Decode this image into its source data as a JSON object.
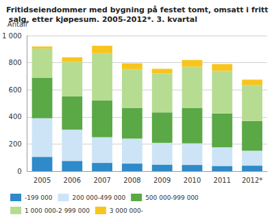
{
  "chart_data": {
    "type": "bar",
    "title": "Fritidseiendommer med bygning på festet tomt, omsatt i fritt salg, etter kjøpesum. 2005-2012*. 3. kvartal",
    "y_label": "Antall",
    "categories": [
      "2005",
      "2006",
      "2007",
      "2008",
      "2009",
      "2010",
      "2011",
      "2012*"
    ],
    "series": [
      {
        "name": "-199 000",
        "color": "#2e8ac8",
        "values": [
          105,
          75,
          60,
          55,
          48,
          45,
          38,
          40
        ]
      },
      {
        "name": "200 000-499 000",
        "color": "#cce4f6",
        "values": [
          285,
          230,
          190,
          185,
          160,
          160,
          137,
          110
        ]
      },
      {
        "name": "500 000-999 000",
        "color": "#5aa846",
        "values": [
          300,
          245,
          270,
          225,
          225,
          260,
          250,
          220
        ]
      },
      {
        "name": "1 000 000-2 999 000",
        "color": "#b6dc92",
        "values": [
          215,
          255,
          350,
          285,
          287,
          305,
          315,
          265
        ]
      },
      {
        "name": "3 000 000-",
        "color": "#f8c51e",
        "values": [
          15,
          35,
          55,
          45,
          35,
          50,
          50,
          40
        ]
      }
    ],
    "stacked": true,
    "ylim": [
      0,
      1000
    ],
    "yticks": [
      0,
      200,
      400,
      600,
      800,
      {
        "value": 1000,
        "label": "1 000"
      }
    ],
    "grid": true,
    "legend": "bottom"
  }
}
